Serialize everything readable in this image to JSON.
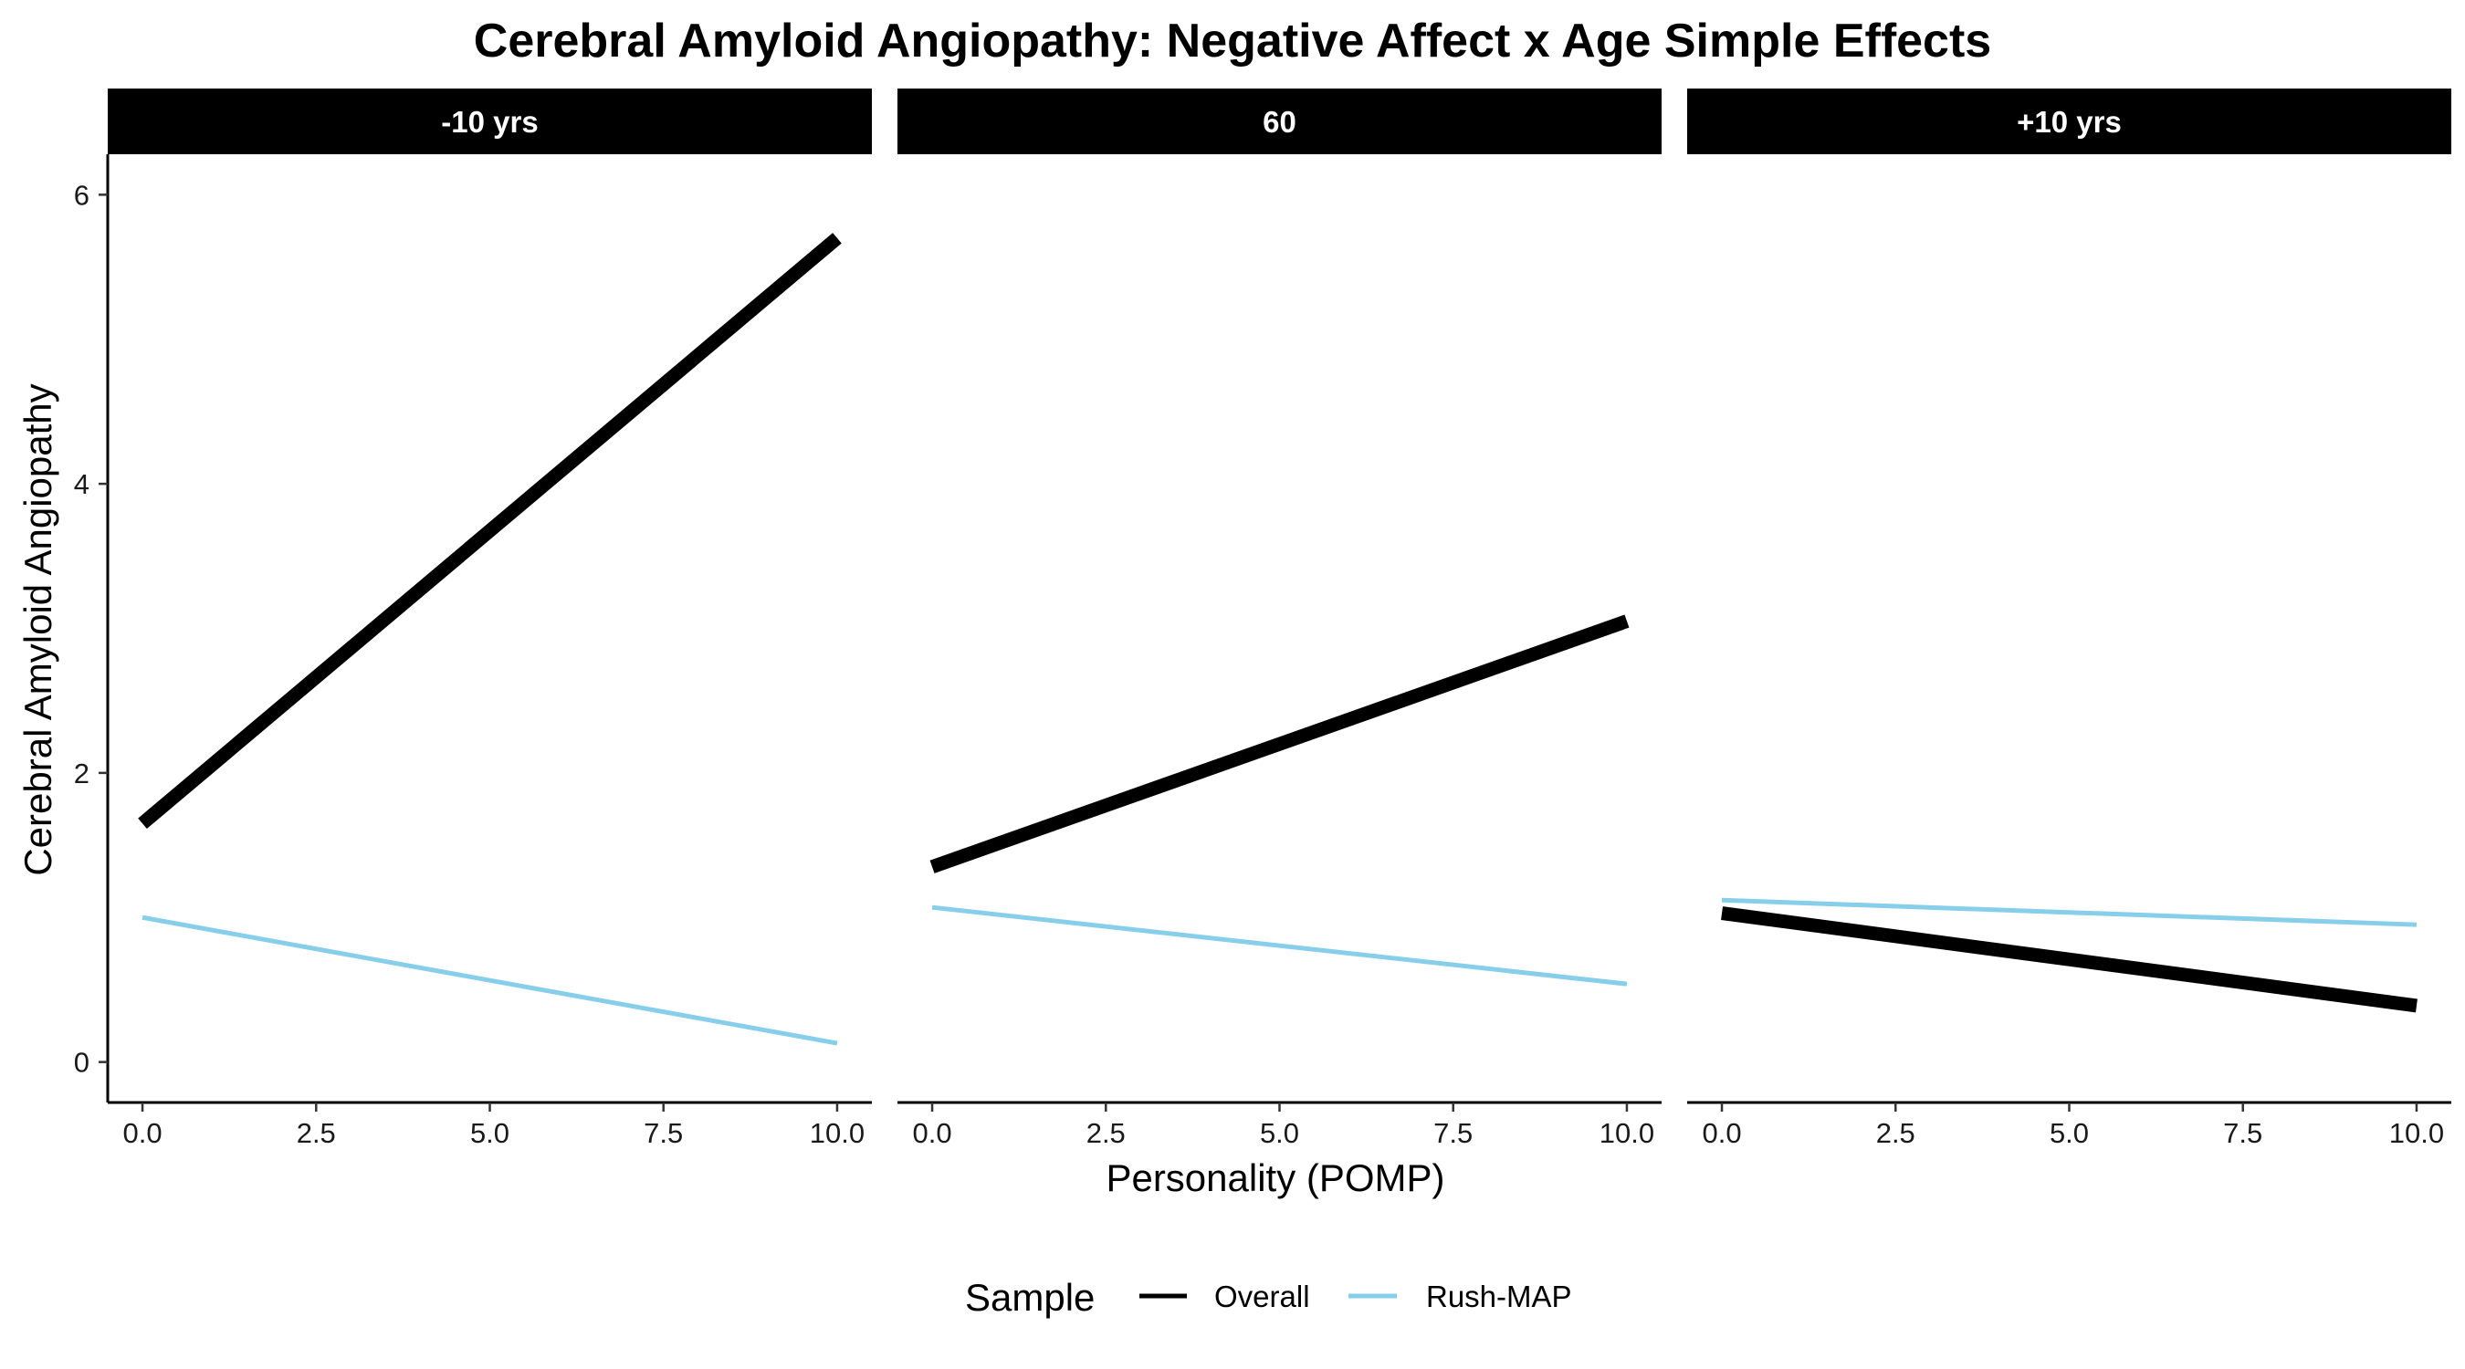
{
  "chart_data": {
    "type": "line",
    "title": "Cerebral Amyloid Angiopathy: Negative Affect x Age Simple Effects",
    "xlabel": "Personality (POMP)",
    "ylabel": "Cerebral Amyloid Angiopathy",
    "xlim": [
      -0.5,
      10.5
    ],
    "ylim": [
      -0.28,
      6.28
    ],
    "x_ticks": [
      "0.0",
      "2.5",
      "5.0",
      "7.5",
      "10.0"
    ],
    "y_ticks": [
      "0",
      "2",
      "4",
      "6"
    ],
    "grid": false,
    "legend": {
      "title": "Sample",
      "position": "bottom"
    },
    "series_styles": [
      {
        "name": "Overall",
        "color": "#000000",
        "width": "thick"
      },
      {
        "name": "Rush-MAP",
        "color": "#87CEEB",
        "width": "thin"
      }
    ],
    "panels": [
      {
        "label": "-10 yrs",
        "series": [
          {
            "name": "Overall",
            "x": [
              0,
              10
            ],
            "y": [
              1.65,
              5.7
            ]
          },
          {
            "name": "Rush-MAP",
            "x": [
              0,
              10
            ],
            "y": [
              1.0,
              0.13
            ]
          }
        ]
      },
      {
        "label": "60",
        "series": [
          {
            "name": "Overall",
            "x": [
              0,
              10
            ],
            "y": [
              1.35,
              3.05
            ]
          },
          {
            "name": "Rush-MAP",
            "x": [
              0,
              10
            ],
            "y": [
              1.07,
              0.54
            ]
          }
        ]
      },
      {
        "label": "+10 yrs",
        "series": [
          {
            "name": "Overall",
            "x": [
              0,
              10
            ],
            "y": [
              1.03,
              0.39
            ]
          },
          {
            "name": "Rush-MAP",
            "x": [
              0,
              10
            ],
            "y": [
              1.12,
              0.95
            ]
          }
        ]
      }
    ]
  }
}
